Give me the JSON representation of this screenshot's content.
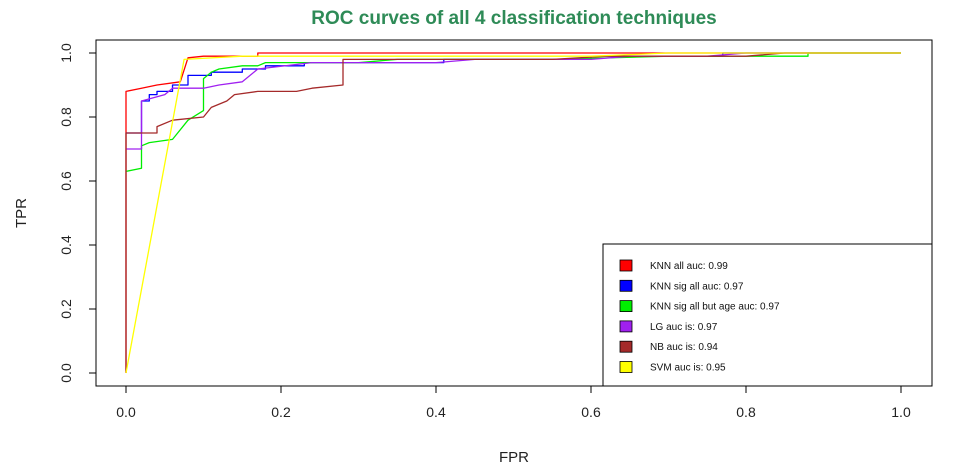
{
  "chart_data": {
    "type": "line",
    "title": "ROC curves of all 4 classification techniques",
    "xlabel": "FPR",
    "ylabel": "TPR",
    "xlim": [
      0,
      1
    ],
    "ylim": [
      0,
      1
    ],
    "x_ticks": [
      "0.0",
      "0.2",
      "0.4",
      "0.6",
      "0.8",
      "1.0"
    ],
    "y_ticks": [
      "0.0",
      "0.2",
      "0.4",
      "0.6",
      "0.8",
      "1.0"
    ],
    "grid": false,
    "legend_position": "bottom-right",
    "series": [
      {
        "name": "KNN all auc: 0.99",
        "color": "#ff0000",
        "points": [
          [
            0,
            0
          ],
          [
            0,
            0.88
          ],
          [
            0.02,
            0.89
          ],
          [
            0.04,
            0.9
          ],
          [
            0.07,
            0.91
          ],
          [
            0.08,
            0.985
          ],
          [
            0.1,
            0.99
          ],
          [
            0.17,
            0.99
          ],
          [
            0.17,
            1.0
          ],
          [
            1.0,
            1.0
          ]
        ]
      },
      {
        "name": "KNN sig all auc: 0.97",
        "color": "#0000ff",
        "points": [
          [
            0,
            0.75
          ],
          [
            0.02,
            0.75
          ],
          [
            0.02,
            0.85
          ],
          [
            0.03,
            0.85
          ],
          [
            0.03,
            0.87
          ],
          [
            0.04,
            0.87
          ],
          [
            0.04,
            0.88
          ],
          [
            0.06,
            0.88
          ],
          [
            0.06,
            0.9
          ],
          [
            0.08,
            0.9
          ],
          [
            0.08,
            0.93
          ],
          [
            0.11,
            0.93
          ],
          [
            0.11,
            0.94
          ],
          [
            0.15,
            0.94
          ],
          [
            0.15,
            0.95
          ],
          [
            0.18,
            0.95
          ],
          [
            0.18,
            0.96
          ],
          [
            0.23,
            0.96
          ],
          [
            0.23,
            0.97
          ],
          [
            0.41,
            0.97
          ],
          [
            0.41,
            0.98
          ],
          [
            0.6,
            0.98
          ],
          [
            0.6,
            0.99
          ],
          [
            0.77,
            0.99
          ],
          [
            0.77,
            1.0
          ],
          [
            1.0,
            1.0
          ]
        ]
      },
      {
        "name": "KNN sig all but age auc: 0.97",
        "color": "#00ee00",
        "points": [
          [
            0,
            0.63
          ],
          [
            0.02,
            0.64
          ],
          [
            0.02,
            0.71
          ],
          [
            0.03,
            0.72
          ],
          [
            0.06,
            0.73
          ],
          [
            0.08,
            0.79
          ],
          [
            0.1,
            0.82
          ],
          [
            0.1,
            0.92
          ],
          [
            0.11,
            0.94
          ],
          [
            0.12,
            0.95
          ],
          [
            0.15,
            0.96
          ],
          [
            0.17,
            0.96
          ],
          [
            0.18,
            0.97
          ],
          [
            0.3,
            0.97
          ],
          [
            0.35,
            0.98
          ],
          [
            0.55,
            0.98
          ],
          [
            0.7,
            0.99
          ],
          [
            0.88,
            0.99
          ],
          [
            0.88,
            1.0
          ],
          [
            1.0,
            1.0
          ]
        ]
      },
      {
        "name": "LG auc is: 0.97",
        "color": "#a020f0",
        "points": [
          [
            0,
            0.7
          ],
          [
            0.02,
            0.7
          ],
          [
            0.02,
            0.85
          ],
          [
            0.05,
            0.87
          ],
          [
            0.06,
            0.89
          ],
          [
            0.1,
            0.89
          ],
          [
            0.12,
            0.9
          ],
          [
            0.15,
            0.91
          ],
          [
            0.17,
            0.95
          ],
          [
            0.24,
            0.97
          ],
          [
            0.4,
            0.97
          ],
          [
            0.45,
            0.98
          ],
          [
            0.6,
            0.98
          ],
          [
            0.65,
            0.99
          ],
          [
            0.75,
            0.99
          ],
          [
            0.8,
            1.0
          ],
          [
            1.0,
            1.0
          ]
        ]
      },
      {
        "name": "NB auc is: 0.94",
        "color": "#a52a2a",
        "points": [
          [
            0,
            0
          ],
          [
            0,
            0.75
          ],
          [
            0.04,
            0.75
          ],
          [
            0.04,
            0.77
          ],
          [
            0.06,
            0.79
          ],
          [
            0.1,
            0.8
          ],
          [
            0.11,
            0.83
          ],
          [
            0.13,
            0.85
          ],
          [
            0.14,
            0.87
          ],
          [
            0.17,
            0.88
          ],
          [
            0.22,
            0.88
          ],
          [
            0.24,
            0.89
          ],
          [
            0.28,
            0.9
          ],
          [
            0.28,
            0.98
          ],
          [
            0.55,
            0.98
          ],
          [
            0.62,
            0.99
          ],
          [
            0.8,
            0.99
          ],
          [
            0.85,
            1.0
          ],
          [
            1.0,
            1.0
          ]
        ]
      },
      {
        "name": "SVM auc is: 0.95",
        "color": "#ffff00",
        "points": [
          [
            0,
            0
          ],
          [
            0.075,
            0.98
          ],
          [
            0.15,
            0.99
          ],
          [
            0.35,
            0.99
          ],
          [
            0.42,
            0.99
          ],
          [
            0.6,
            0.99
          ],
          [
            0.7,
            1.0
          ],
          [
            1.0,
            1.0
          ]
        ]
      }
    ]
  }
}
